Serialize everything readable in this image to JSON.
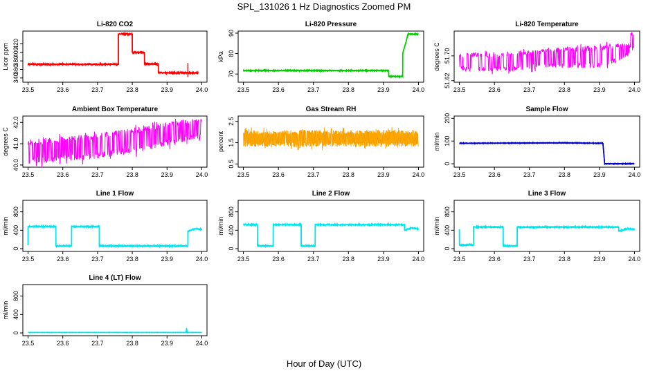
{
  "figure": {
    "title": "SPL_131026  1 Hz Diagnostics Zoomed PM",
    "xlabel": "Hour of Day (UTC)"
  },
  "chart_data": [
    {
      "type": "line",
      "title": "Li-820 CO2",
      "ylabel": "Licor ppm",
      "color": "#ff0000",
      "xlim": [
        23.485,
        24.015
      ],
      "ylim": [
        330,
        450
      ],
      "xticks": [
        "23.5",
        "23.6",
        "23.7",
        "23.8",
        "23.9",
        "24.0"
      ],
      "yticks": [
        {
          "v": 340,
          "label": "340"
        },
        {
          "v": 360,
          "label": "360"
        },
        {
          "v": 380,
          "label": "380"
        },
        {
          "v": 400,
          "label": "400"
        },
        {
          "v": 420,
          "label": "420"
        }
      ],
      "x": [
        23.5,
        23.76,
        23.76,
        23.8,
        23.8,
        23.835,
        23.835,
        23.875,
        23.875,
        23.99
      ],
      "y": [
        372,
        372,
        443,
        443,
        400,
        400,
        373,
        373,
        352,
        352
      ],
      "noise": 1.2,
      "spikes": [
        {
          "x": 23.96,
          "lo": 342,
          "hi": 375
        }
      ]
    },
    {
      "type": "line",
      "title": "Li-820 Pressure",
      "ylabel": "kPa",
      "color": "#00cc00",
      "xlim": [
        23.485,
        24.015
      ],
      "ylim": [
        66,
        91
      ],
      "xticks": [
        "23.5",
        "23.6",
        "23.7",
        "23.8",
        "23.9",
        "24.0"
      ],
      "yticks": [
        {
          "v": 70,
          "label": "70"
        },
        {
          "v": 80,
          "label": "80"
        },
        {
          "v": 90,
          "label": "90"
        }
      ],
      "x": [
        23.5,
        23.915,
        23.915,
        23.955,
        23.955,
        23.965,
        23.97,
        23.975,
        24.0
      ],
      "y": [
        71.7,
        71.7,
        68.8,
        68.8,
        80,
        86,
        89.5,
        89.5,
        89.5
      ],
      "noise": 0.15
    },
    {
      "type": "band",
      "title": "Li-820 Temperature",
      "ylabel": "degrees C",
      "color": "#ff00ff",
      "xlim": [
        23.485,
        24.015
      ],
      "ylim": [
        51.615,
        51.78
      ],
      "xticks": [
        "23.5",
        "23.6",
        "23.7",
        "23.8",
        "23.9",
        "24.0"
      ],
      "yticks": [
        {
          "v": 51.62,
          "label": "51.62"
        },
        {
          "v": 51.7,
          "label": "51.70"
        }
      ],
      "x": [
        23.5,
        23.62,
        23.65,
        23.72,
        23.8,
        23.9,
        23.93,
        23.985,
        23.985,
        24.0
      ],
      "lo": [
        51.65,
        51.65,
        51.65,
        51.66,
        51.66,
        51.66,
        51.67,
        51.7,
        51.725,
        51.725
      ],
      "hi": [
        51.71,
        51.71,
        51.715,
        51.72,
        51.73,
        51.735,
        51.74,
        51.74,
        51.775,
        51.775
      ],
      "freq": 3
    },
    {
      "type": "band",
      "title": "Ambient Box Temperature",
      "ylabel": "degrees C",
      "color": "#ff00ff",
      "xlim": [
        23.485,
        24.015
      ],
      "ylim": [
        39.9,
        42.3
      ],
      "xticks": [
        "23.5",
        "23.6",
        "23.7",
        "23.8",
        "23.9",
        "24.0"
      ],
      "yticks": [
        {
          "v": 40.0,
          "label": "40.0"
        },
        {
          "v": 41.0,
          "label": "41.0"
        },
        {
          "v": 42.0,
          "label": "42.0"
        }
      ],
      "x": [
        23.5,
        23.7,
        23.85,
        23.95,
        24.0
      ],
      "lo": [
        40.05,
        40.3,
        40.7,
        41.1,
        41.2
      ],
      "hi": [
        41.2,
        41.5,
        41.85,
        42.15,
        42.2
      ],
      "freq": 2
    },
    {
      "type": "band",
      "title": "Gas Stream RH",
      "ylabel": "percent",
      "color": "#ffa500",
      "xlim": [
        23.485,
        24.015
      ],
      "ylim": [
        0.35,
        2.75
      ],
      "xticks": [
        "23.5",
        "23.6",
        "23.7",
        "23.8",
        "23.9",
        "24.0"
      ],
      "yticks": [
        {
          "v": 0.5,
          "label": "0.5"
        },
        {
          "v": 1.5,
          "label": "1.5"
        },
        {
          "v": 2.5,
          "label": "2.5"
        }
      ],
      "x": [
        23.5,
        24.0
      ],
      "lo": [
        1.3,
        1.3
      ],
      "hi": [
        2.1,
        2.1
      ],
      "freq": 1
    },
    {
      "type": "line",
      "title": "Sample Flow",
      "ylabel": "ml/min",
      "color": "#0000cc",
      "xlim": [
        23.485,
        24.015
      ],
      "ylim": [
        -15,
        210
      ],
      "xticks": [
        "23.5",
        "23.6",
        "23.7",
        "23.8",
        "23.9",
        "24.0"
      ],
      "yticks": [
        {
          "v": 0,
          "label": "0"
        },
        {
          "v": 100,
          "label": "100"
        },
        {
          "v": 200,
          "label": "200"
        }
      ],
      "x": [
        23.5,
        23.8,
        23.91,
        23.915,
        24.0
      ],
      "y": [
        90,
        92,
        90,
        0,
        0
      ],
      "noise": 1
    },
    {
      "type": "line",
      "title": "Line 1 Flow",
      "ylabel": "ml/min",
      "color": "#00e5ee",
      "xlim": [
        23.485,
        24.015
      ],
      "ylim": [
        -60,
        1050
      ],
      "xticks": [
        "23.5",
        "23.6",
        "23.7",
        "23.8",
        "23.9",
        "24.0"
      ],
      "yticks": [
        {
          "v": 0,
          "label": "0"
        },
        {
          "v": 400,
          "label": "400"
        },
        {
          "v": 800,
          "label": "800"
        }
      ],
      "x": [
        23.5,
        23.5,
        23.58,
        23.58,
        23.625,
        23.625,
        23.705,
        23.705,
        23.96,
        23.96,
        23.98,
        24.0
      ],
      "y": [
        80,
        480,
        480,
        60,
        60,
        480,
        480,
        60,
        60,
        380,
        430,
        420
      ],
      "noise": 8
    },
    {
      "type": "line",
      "title": "Line 2 Flow",
      "ylabel": "ml/min",
      "color": "#00e5ee",
      "xlim": [
        23.485,
        24.015
      ],
      "ylim": [
        -60,
        1050
      ],
      "xticks": [
        "23.5",
        "23.6",
        "23.7",
        "23.8",
        "23.9",
        "24.0"
      ],
      "yticks": [
        {
          "v": 0,
          "label": "0"
        },
        {
          "v": 400,
          "label": "400"
        },
        {
          "v": 800,
          "label": "800"
        }
      ],
      "x": [
        23.5,
        23.54,
        23.54,
        23.585,
        23.585,
        23.665,
        23.665,
        23.705,
        23.705,
        23.96,
        23.96,
        23.98,
        24.0
      ],
      "y": [
        520,
        520,
        60,
        60,
        520,
        520,
        60,
        60,
        520,
        520,
        400,
        450,
        430
      ],
      "noise": 8
    },
    {
      "type": "line",
      "title": "Line 3 Flow",
      "ylabel": "ml/min",
      "color": "#00e5ee",
      "xlim": [
        23.485,
        24.015
      ],
      "ylim": [
        -60,
        1050
      ],
      "xticks": [
        "23.5",
        "23.6",
        "23.7",
        "23.8",
        "23.9",
        "24.0"
      ],
      "yticks": [
        {
          "v": 0,
          "label": "0"
        },
        {
          "v": 400,
          "label": "400"
        },
        {
          "v": 800,
          "label": "800"
        }
      ],
      "x": [
        23.5,
        23.5,
        23.54,
        23.54,
        23.625,
        23.625,
        23.665,
        23.665,
        23.955,
        23.955,
        23.98,
        24.0
      ],
      "y": [
        420,
        80,
        80,
        470,
        470,
        60,
        60,
        470,
        470,
        380,
        430,
        420
      ],
      "noise": 8
    },
    {
      "type": "line",
      "title": "Line 4 (LT) Flow",
      "ylabel": "ml/min",
      "color": "#00e5ee",
      "xlim": [
        23.485,
        24.015
      ],
      "ylim": [
        -60,
        1050
      ],
      "xticks": [
        "23.5",
        "23.6",
        "23.7",
        "23.8",
        "23.9",
        "24.0"
      ],
      "yticks": [
        {
          "v": 0,
          "label": "0"
        },
        {
          "v": 400,
          "label": "400"
        },
        {
          "v": 800,
          "label": "800"
        }
      ],
      "x": [
        23.5,
        23.955,
        23.956,
        23.958,
        24.0
      ],
      "y": [
        10,
        10,
        100,
        10,
        10
      ],
      "noise": 2
    }
  ]
}
